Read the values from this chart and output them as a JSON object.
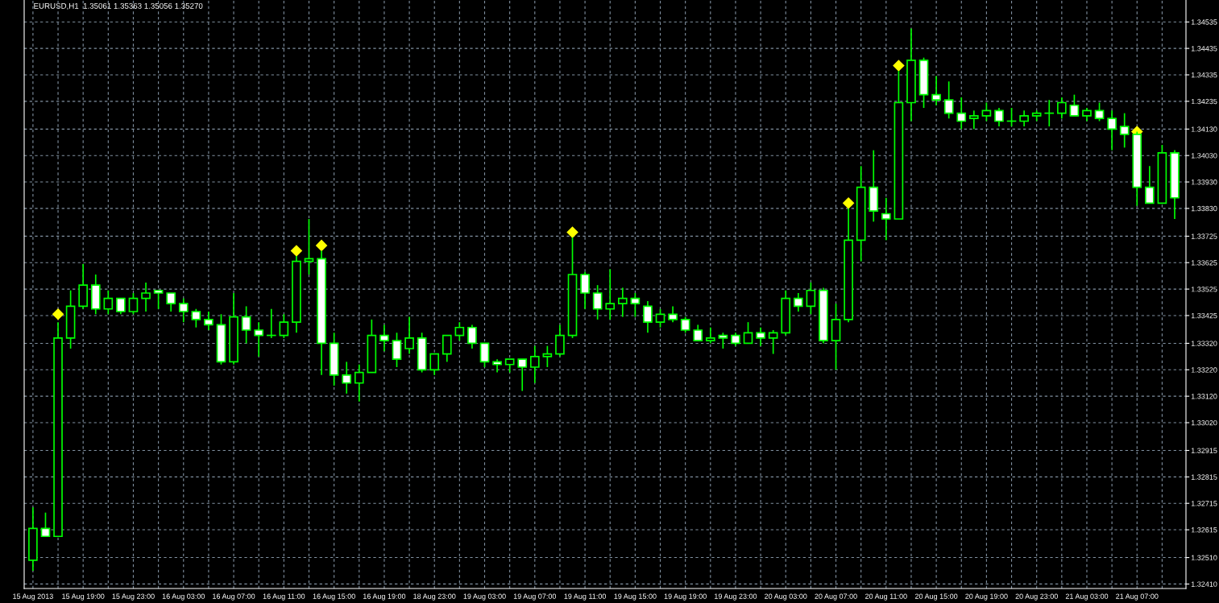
{
  "chart_data": {
    "type": "candlestick",
    "title": "EURUSD,H1  1.35061 1.35363 1.35056 1.35270",
    "categories": [
      "15 Aug 2013",
      null,
      null,
      null,
      "15 Aug 19:00",
      null,
      null,
      null,
      "15 Aug 23:00",
      null,
      null,
      null,
      "16 Aug 03:00",
      null,
      null,
      null,
      "16 Aug 07:00",
      null,
      null,
      null,
      "16 Aug 11:00",
      null,
      null,
      null,
      "16 Aug 15:00",
      null,
      null,
      null,
      "16 Aug 19:00",
      null,
      null,
      null,
      "18 Aug 23:00",
      null,
      null,
      null,
      "19 Aug 03:00",
      null,
      null,
      null,
      "19 Aug 07:00",
      null,
      null,
      null,
      "19 Aug 11:00",
      null,
      null,
      null,
      "19 Aug 15:00",
      null,
      null,
      null,
      "19 Aug 19:00",
      null,
      null,
      null,
      "19 Aug 23:00",
      null,
      null,
      null,
      "20 Aug 03:00",
      null,
      null,
      null,
      "20 Aug 07:00",
      null,
      null,
      null,
      "20 Aug 11:00",
      null,
      null,
      null,
      "20 Aug 15:00",
      null,
      null,
      null,
      "20 Aug 19:00",
      null,
      null,
      null,
      "20 Aug 23:00",
      null,
      null,
      null,
      "21 Aug 03:00",
      null,
      null,
      null,
      "21 Aug 07:00",
      null,
      null,
      null
    ],
    "series": [
      {
        "color": "#00ff00",
        "ohlc": [
          [
            1.325,
            1.327,
            1.3246,
            1.3262
          ],
          [
            1.3262,
            1.3268,
            1.3259,
            1.3259
          ],
          [
            1.3259,
            1.334,
            1.3259,
            1.3334
          ],
          [
            1.3334,
            1.3352,
            1.333,
            1.3346
          ],
          [
            1.3346,
            1.3362,
            1.3345,
            1.3354
          ],
          [
            1.3354,
            1.3358,
            1.3343,
            1.3345
          ],
          [
            1.3345,
            1.3352,
            1.3343,
            1.3349
          ],
          [
            1.3349,
            1.3349,
            1.3343,
            1.3344
          ],
          [
            1.3344,
            1.3351,
            1.3343,
            1.3349
          ],
          [
            1.3349,
            1.3355,
            1.3344,
            1.3351
          ],
          [
            1.3352,
            1.3352,
            1.3345,
            1.3351
          ],
          [
            1.3351,
            1.3351,
            1.3344,
            1.3347
          ],
          [
            1.3347,
            1.3349,
            1.334,
            1.3344
          ],
          [
            1.3344,
            1.3345,
            1.3338,
            1.3341
          ],
          [
            1.3341,
            1.3344,
            1.3337,
            1.3339
          ],
          [
            1.3339,
            1.3343,
            1.3324,
            1.3325
          ],
          [
            1.3325,
            1.3351,
            1.3324,
            1.3342
          ],
          [
            1.3342,
            1.3346,
            1.3332,
            1.3337
          ],
          [
            1.3337,
            1.334,
            1.3327,
            1.3335
          ],
          [
            1.3335,
            1.3345,
            1.3334,
            1.3335
          ],
          [
            1.3335,
            1.3343,
            1.3334,
            1.334
          ],
          [
            1.334,
            1.3365,
            1.3336,
            1.3363
          ],
          [
            1.3363,
            1.3379,
            1.3358,
            1.3364
          ],
          [
            1.3364,
            1.3367,
            1.332,
            1.3332
          ],
          [
            1.3332,
            1.3336,
            1.3316,
            1.332
          ],
          [
            1.332,
            1.3325,
            1.3313,
            1.3317
          ],
          [
            1.3317,
            1.3324,
            1.331,
            1.3321
          ],
          [
            1.3321,
            1.3341,
            1.3321,
            1.3335
          ],
          [
            1.3335,
            1.3339,
            1.3329,
            1.3333
          ],
          [
            1.3333,
            1.3336,
            1.3323,
            1.3326
          ],
          [
            1.333,
            1.3342,
            1.3328,
            1.3334
          ],
          [
            1.3334,
            1.3336,
            1.3321,
            1.3322
          ],
          [
            1.3322,
            1.3328,
            1.332,
            1.3328
          ],
          [
            1.3328,
            1.3335,
            1.3325,
            1.3335
          ],
          [
            1.3335,
            1.334,
            1.3333,
            1.3338
          ],
          [
            1.3338,
            1.3339,
            1.333,
            1.3332
          ],
          [
            1.3332,
            1.3332,
            1.3323,
            1.3325
          ],
          [
            1.3325,
            1.3326,
            1.3321,
            1.3324
          ],
          [
            1.3324,
            1.3326,
            1.3321,
            1.3326
          ],
          [
            1.3326,
            1.3326,
            1.3314,
            1.3323
          ],
          [
            1.3323,
            1.3331,
            1.3317,
            1.3327
          ],
          [
            1.3327,
            1.3331,
            1.3323,
            1.3328
          ],
          [
            1.3328,
            1.3339,
            1.3327,
            1.3335
          ],
          [
            1.3335,
            1.3372,
            1.3334,
            1.3358
          ],
          [
            1.3358,
            1.3359,
            1.3345,
            1.3351
          ],
          [
            1.3351,
            1.3354,
            1.3341,
            1.3345
          ],
          [
            1.3345,
            1.336,
            1.3341,
            1.3347
          ],
          [
            1.3347,
            1.3353,
            1.3342,
            1.3349
          ],
          [
            1.3349,
            1.3351,
            1.3342,
            1.3347
          ],
          [
            1.3346,
            1.3348,
            1.3336,
            1.334
          ],
          [
            1.334,
            1.3345,
            1.3338,
            1.3343
          ],
          [
            1.3343,
            1.3346,
            1.334,
            1.3341
          ],
          [
            1.3341,
            1.3342,
            1.3336,
            1.3337
          ],
          [
            1.3337,
            1.3339,
            1.3333,
            1.3333
          ],
          [
            1.3333,
            1.3338,
            1.3332,
            1.3334
          ],
          [
            1.3335,
            1.3336,
            1.333,
            1.3334
          ],
          [
            1.3335,
            1.3336,
            1.3331,
            1.3332
          ],
          [
            1.3332,
            1.334,
            1.3332,
            1.3336
          ],
          [
            1.3336,
            1.3338,
            1.3331,
            1.3334
          ],
          [
            1.3334,
            1.3337,
            1.3328,
            1.3336
          ],
          [
            1.3336,
            1.3352,
            1.3335,
            1.3349
          ],
          [
            1.3349,
            1.3351,
            1.3344,
            1.3346
          ],
          [
            1.3346,
            1.3355,
            1.3343,
            1.3352
          ],
          [
            1.3352,
            1.3353,
            1.3332,
            1.3333
          ],
          [
            1.3333,
            1.3347,
            1.3322,
            1.3341
          ],
          [
            1.3341,
            1.3383,
            1.334,
            1.3371
          ],
          [
            1.3371,
            1.3399,
            1.3363,
            1.3391
          ],
          [
            1.3391,
            1.3405,
            1.3378,
            1.3382
          ],
          [
            1.3381,
            1.3387,
            1.3371,
            1.3379
          ],
          [
            1.3379,
            1.3435,
            1.3379,
            1.3423
          ],
          [
            1.3423,
            1.3451,
            1.3416,
            1.3439
          ],
          [
            1.3439,
            1.344,
            1.3421,
            1.3426
          ],
          [
            1.3426,
            1.3433,
            1.3422,
            1.3424
          ],
          [
            1.3424,
            1.3431,
            1.3417,
            1.3419
          ],
          [
            1.3419,
            1.3425,
            1.3413,
            1.3416
          ],
          [
            1.3417,
            1.342,
            1.3413,
            1.3418
          ],
          [
            1.3418,
            1.3423,
            1.3416,
            1.342
          ],
          [
            1.342,
            1.3421,
            1.3414,
            1.3416
          ],
          [
            1.3416,
            1.3421,
            1.3414,
            1.3416
          ],
          [
            1.3416,
            1.342,
            1.3414,
            1.3418
          ],
          [
            1.3418,
            1.342,
            1.3416,
            1.3419
          ],
          [
            1.3419,
            1.3424,
            1.3414,
            1.3419
          ],
          [
            1.3419,
            1.3425,
            1.3417,
            1.3423
          ],
          [
            1.3422,
            1.3426,
            1.3418,
            1.3418
          ],
          [
            1.3418,
            1.3421,
            1.3416,
            1.342
          ],
          [
            1.342,
            1.3423,
            1.3416,
            1.3417
          ],
          [
            1.3417,
            1.342,
            1.3405,
            1.3413
          ],
          [
            1.3414,
            1.3419,
            1.3406,
            1.3411
          ],
          [
            1.3411,
            1.3412,
            1.3384,
            1.3391
          ],
          [
            1.3391,
            1.3399,
            1.3385,
            1.3385
          ],
          [
            1.3385,
            1.3407,
            1.3385,
            1.3404
          ],
          [
            1.3404,
            1.3405,
            1.3379,
            1.3387
          ]
        ]
      },
      {
        "type": "scatter",
        "color": "#ffff00",
        "marker": "diamond",
        "values": [
          null,
          null,
          1.3343,
          null,
          null,
          null,
          null,
          null,
          null,
          null,
          null,
          null,
          null,
          null,
          null,
          null,
          null,
          null,
          null,
          null,
          null,
          1.3367,
          null,
          1.3369,
          null,
          null,
          null,
          null,
          null,
          null,
          null,
          null,
          null,
          null,
          null,
          null,
          null,
          null,
          null,
          null,
          null,
          null,
          null,
          1.3374,
          null,
          null,
          null,
          null,
          null,
          null,
          null,
          null,
          null,
          null,
          null,
          null,
          null,
          null,
          null,
          null,
          null,
          null,
          null,
          null,
          null,
          1.3385,
          null,
          null,
          null,
          1.3437,
          null,
          null,
          null,
          null,
          null,
          null,
          null,
          null,
          null,
          null,
          null,
          null,
          null,
          null,
          null,
          null,
          null,
          null,
          1.3412,
          null,
          null,
          null
        ]
      }
    ],
    "ylim": [
      1.32393,
      1.34618
    ],
    "yticks": [
      {
        "value": 1.34535,
        "label": "1.34535"
      },
      {
        "value": 1.34435,
        "label": "1.34435"
      },
      {
        "value": 1.34335,
        "label": "1.34335"
      },
      {
        "value": 1.34235,
        "label": "1.34235"
      },
      {
        "value": 1.3413,
        "label": "1.34130"
      },
      {
        "value": 1.3403,
        "label": "1.34030"
      },
      {
        "value": 1.3393,
        "label": "1.33930"
      },
      {
        "value": 1.3383,
        "label": "1.33830"
      },
      {
        "value": 1.33725,
        "label": "1.33725"
      },
      {
        "value": 1.33625,
        "label": "1.33625"
      },
      {
        "value": 1.33525,
        "label": "1.33525"
      },
      {
        "value": 1.33425,
        "label": "1.33425"
      },
      {
        "value": 1.3332,
        "label": "1.33320"
      },
      {
        "value": 1.3322,
        "label": "1.33220"
      },
      {
        "value": 1.3312,
        "label": "1.33120"
      },
      {
        "value": 1.3302,
        "label": "1.33020"
      },
      {
        "value": 1.32915,
        "label": "1.32915"
      },
      {
        "value": 1.32815,
        "label": "1.32815"
      },
      {
        "value": 1.32715,
        "label": "1.32715"
      },
      {
        "value": 1.32615,
        "label": "1.32615"
      },
      {
        "value": 1.3251,
        "label": "1.32510"
      },
      {
        "value": 1.3241,
        "label": "1.32410"
      }
    ],
    "grid": true
  }
}
